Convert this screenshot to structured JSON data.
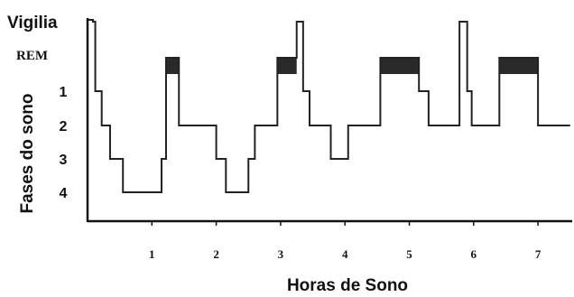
{
  "chart_data": {
    "type": "line",
    "xlabel": "Horas de Sono",
    "ylabel": "Fases do sono",
    "x_ticks": [
      1,
      2,
      3,
      4,
      5,
      6,
      7
    ],
    "y_ticks": [
      "Vigilia",
      "REM",
      "1",
      "2",
      "3",
      "4"
    ],
    "xlim": [
      0,
      7.5
    ],
    "grid": false,
    "series": [
      {
        "values": [
          {
            "x": 0.0,
            "stage": "Vigilia"
          },
          {
            "x": 0.12,
            "stage": "1"
          },
          {
            "x": 0.22,
            "stage": "2"
          },
          {
            "x": 0.35,
            "stage": "3"
          },
          {
            "x": 0.55,
            "stage": "4"
          },
          {
            "x": 1.15,
            "stage": "3"
          },
          {
            "x": 1.22,
            "stage": "REM"
          },
          {
            "x": 1.42,
            "stage": "2"
          },
          {
            "x": 2.0,
            "stage": "3"
          },
          {
            "x": 2.15,
            "stage": "4"
          },
          {
            "x": 2.5,
            "stage": "3"
          },
          {
            "x": 2.6,
            "stage": "2"
          },
          {
            "x": 2.95,
            "stage": "REM"
          },
          {
            "x": 3.25,
            "stage": "Vigilia"
          },
          {
            "x": 3.35,
            "stage": "1"
          },
          {
            "x": 3.45,
            "stage": "2"
          },
          {
            "x": 3.78,
            "stage": "3"
          },
          {
            "x": 4.05,
            "stage": "2"
          },
          {
            "x": 4.55,
            "stage": "REM"
          },
          {
            "x": 5.15,
            "stage": "1"
          },
          {
            "x": 5.3,
            "stage": "2"
          },
          {
            "x": 5.78,
            "stage": "Vigilia"
          },
          {
            "x": 5.9,
            "stage": "1"
          },
          {
            "x": 5.97,
            "stage": "2"
          },
          {
            "x": 6.4,
            "stage": "REM"
          },
          {
            "x": 7.0,
            "stage": "2"
          },
          {
            "x": 7.5,
            "stage": "2"
          }
        ]
      }
    ],
    "rem_blocks": [
      [
        1.22,
        1.42
      ],
      [
        2.95,
        3.25
      ],
      [
        4.55,
        5.15
      ],
      [
        6.4,
        7.0
      ]
    ],
    "colors": {
      "line": "#222222",
      "rem_block": "#2a2a2a",
      "axis": "#111111"
    }
  }
}
